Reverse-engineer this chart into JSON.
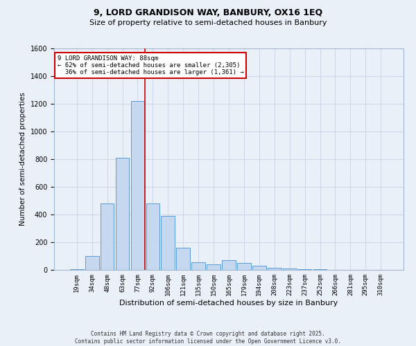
{
  "title_line1": "9, LORD GRANDISON WAY, BANBURY, OX16 1EQ",
  "title_line2": "Size of property relative to semi-detached houses in Banbury",
  "xlabel": "Distribution of semi-detached houses by size in Banbury",
  "ylabel": "Number of semi-detached properties",
  "categories": [
    "19sqm",
    "34sqm",
    "48sqm",
    "63sqm",
    "77sqm",
    "92sqm",
    "106sqm",
    "121sqm",
    "135sqm",
    "150sqm",
    "165sqm",
    "179sqm",
    "194sqm",
    "208sqm",
    "223sqm",
    "237sqm",
    "252sqm",
    "266sqm",
    "281sqm",
    "295sqm",
    "310sqm"
  ],
  "values": [
    5,
    100,
    480,
    810,
    1220,
    480,
    390,
    160,
    55,
    40,
    70,
    50,
    30,
    15,
    10,
    5,
    5,
    2,
    2,
    2,
    2
  ],
  "bar_color": "#c5d8f0",
  "bar_edge_color": "#5a9ad4",
  "property_line_label": "9 LORD GRANDISON WAY: 88sqm",
  "smaller_pct": "62%",
  "smaller_count": "2,305",
  "larger_pct": "36%",
  "larger_count": "1,361",
  "annotation_box_color": "#ffffff",
  "annotation_box_edge": "#cc0000",
  "line_color": "#cc0000",
  "ylim": [
    0,
    1600
  ],
  "yticks": [
    0,
    200,
    400,
    600,
    800,
    1000,
    1200,
    1400,
    1600
  ],
  "grid_color": "#d0d8e8",
  "background_color": "#eaf0f8",
  "footer_line1": "Contains HM Land Registry data © Crown copyright and database right 2025.",
  "footer_line2": "Contains public sector information licensed under the Open Government Licence v3.0."
}
